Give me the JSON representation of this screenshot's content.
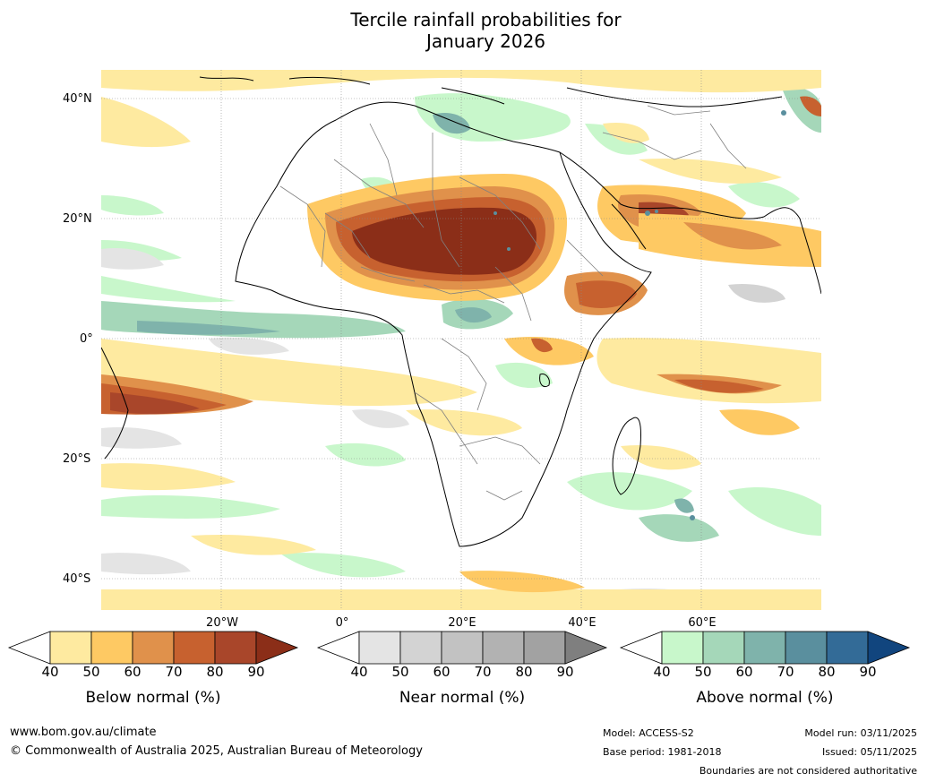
{
  "title": {
    "line1": "Tercile rainfall probabilities for",
    "line2": "January 2026"
  },
  "map": {
    "lat_labels": [
      "40°N",
      "20°N",
      "0°",
      "20°S",
      "40°S"
    ],
    "lon_labels": [
      "20°W",
      "0°",
      "20°E",
      "40°E",
      "60°E"
    ],
    "colors": {
      "ocean_bg": "#ffffff",
      "coast": "#000000",
      "border": "#808080"
    }
  },
  "legends": {
    "below": {
      "caption": "Below normal (%)",
      "ticks": [
        "40",
        "50",
        "60",
        "70",
        "80",
        "90"
      ],
      "colors": [
        "#ffffff",
        "#feeaa0",
        "#fec963",
        "#e0914b",
        "#c7612f",
        "#a9462a",
        "#8b2e18"
      ]
    },
    "near": {
      "caption": "Near normal (%)",
      "ticks": [
        "40",
        "50",
        "60",
        "70",
        "80",
        "90"
      ],
      "colors": [
        "#ffffff",
        "#e4e4e4",
        "#d3d3d3",
        "#c2c2c2",
        "#b2b2b2",
        "#a2a2a2",
        "#7f7f7f"
      ]
    },
    "above": {
      "caption": "Above normal (%)",
      "ticks": [
        "40",
        "50",
        "60",
        "70",
        "80",
        "90"
      ],
      "colors": [
        "#ffffff",
        "#c8f7cb",
        "#a5d7b9",
        "#7fb3ab",
        "#5a8f9e",
        "#336b97",
        "#11457e"
      ]
    }
  },
  "footer": {
    "website": "www.bom.gov.au/climate",
    "copyright": "© Commonwealth of Australia 2025, Australian Bureau of Meteorology",
    "model": "Model: ACCESS-S2",
    "base_period": "Base period: 1981-2018",
    "model_run": "Model run: 03/11/2025",
    "issued": "Issued: 05/11/2025",
    "disclaimer": "Boundaries are not considered authoritative"
  }
}
